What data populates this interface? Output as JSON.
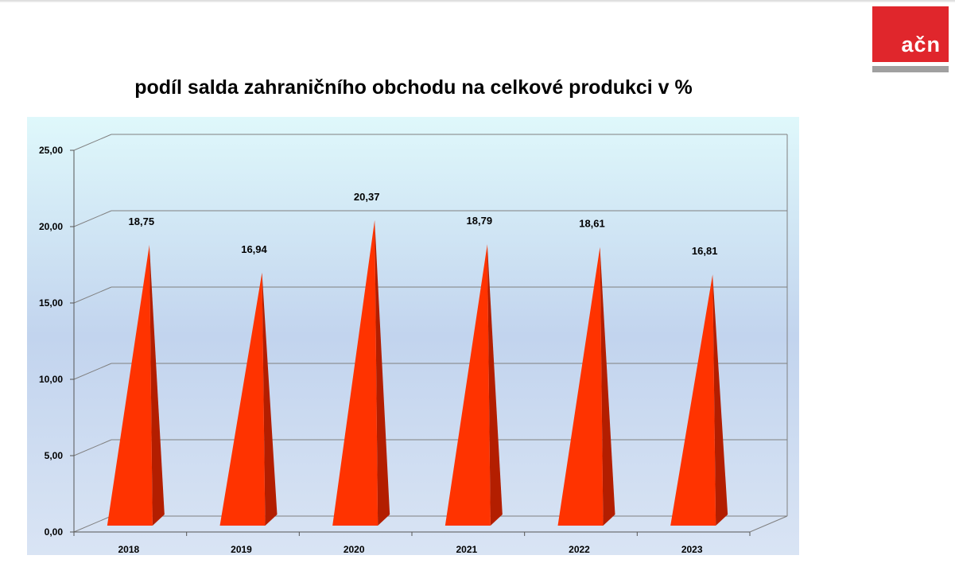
{
  "logo": {
    "text": "ačn"
  },
  "colors": {
    "pyramid_front": "#ff3300",
    "pyramid_side": "#b31e00",
    "logo_red": "#e0262c",
    "gridline": "#808080"
  },
  "chart_data": {
    "type": "bar",
    "bar_shape": "3d-pyramid",
    "title": "podíl salda zahraničního obchodu na celkové produkci v %",
    "categories": [
      "2018",
      "2019",
      "2020",
      "2021",
      "2022",
      "2023"
    ],
    "values": [
      18.75,
      16.94,
      20.37,
      18.79,
      18.61,
      16.81
    ],
    "data_labels": [
      "18,75",
      "16,94",
      "20,37",
      "18,79",
      "18,61",
      "16,81"
    ],
    "y_tick_values": [
      0,
      5,
      10,
      15,
      20,
      25
    ],
    "y_tick_labels": [
      "0,00",
      "5,00",
      "10,00",
      "15,00",
      "20,00",
      "25,00"
    ],
    "ylim": [
      0,
      25
    ],
    "grid": true,
    "legend": "none",
    "xlabel": "",
    "ylabel": ""
  }
}
